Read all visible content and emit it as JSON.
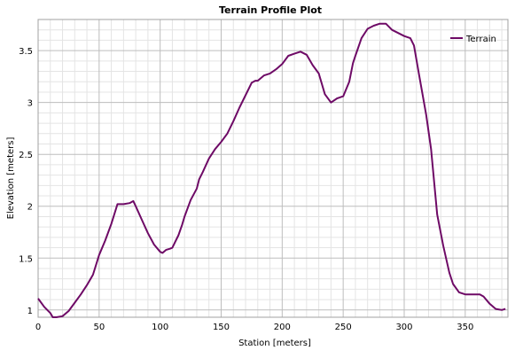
{
  "chart_data": {
    "type": "line",
    "title": "Terrain Profile Plot",
    "xlabel": "Station [meters]",
    "ylabel": "Elevation [meters]",
    "xlim": [
      0,
      385
    ],
    "ylim": [
      0.93,
      3.8
    ],
    "xticks": [
      0,
      50,
      100,
      150,
      200,
      250,
      300,
      350
    ],
    "yticks": [
      1,
      1.5,
      2,
      2.5,
      3,
      3.5
    ],
    "grid": true,
    "legend_position": "top-right",
    "series": [
      {
        "name": "Terrain",
        "color": "#6e0a66",
        "x": [
          0,
          5,
          10,
          12,
          15,
          20,
          25,
          30,
          35,
          40,
          45,
          50,
          55,
          60,
          65,
          68,
          70,
          75,
          78,
          80,
          85,
          90,
          95,
          100,
          102,
          105,
          108,
          110,
          115,
          118,
          120,
          125,
          130,
          132,
          135,
          140,
          145,
          150,
          155,
          160,
          165,
          170,
          175,
          178,
          180,
          185,
          190,
          195,
          200,
          205,
          210,
          215,
          220,
          225,
          230,
          235,
          240,
          245,
          250,
          255,
          258,
          260,
          265,
          270,
          275,
          280,
          285,
          290,
          295,
          300,
          305,
          308,
          312,
          318,
          322,
          327,
          332,
          337,
          340,
          345,
          350,
          355,
          360,
          362,
          365,
          370,
          375,
          380,
          383
        ],
        "y": [
          1.11,
          1.03,
          0.97,
          0.93,
          0.93,
          0.94,
          0.99,
          1.07,
          1.15,
          1.24,
          1.34,
          1.53,
          1.67,
          1.83,
          2.02,
          2.02,
          2.02,
          2.03,
          2.05,
          2.0,
          1.87,
          1.74,
          1.63,
          1.56,
          1.55,
          1.58,
          1.59,
          1.6,
          1.72,
          1.82,
          1.9,
          2.06,
          2.17,
          2.26,
          2.33,
          2.46,
          2.55,
          2.62,
          2.7,
          2.82,
          2.95,
          3.07,
          3.19,
          3.21,
          3.21,
          3.26,
          3.28,
          3.32,
          3.37,
          3.45,
          3.47,
          3.49,
          3.46,
          3.36,
          3.28,
          3.08,
          3.0,
          3.04,
          3.06,
          3.2,
          3.38,
          3.45,
          3.62,
          3.71,
          3.74,
          3.76,
          3.76,
          3.7,
          3.67,
          3.64,
          3.62,
          3.55,
          3.28,
          2.88,
          2.55,
          1.92,
          1.62,
          1.36,
          1.25,
          1.17,
          1.15,
          1.15,
          1.15,
          1.15,
          1.13,
          1.06,
          1.01,
          1.0,
          1.01
        ]
      }
    ]
  }
}
